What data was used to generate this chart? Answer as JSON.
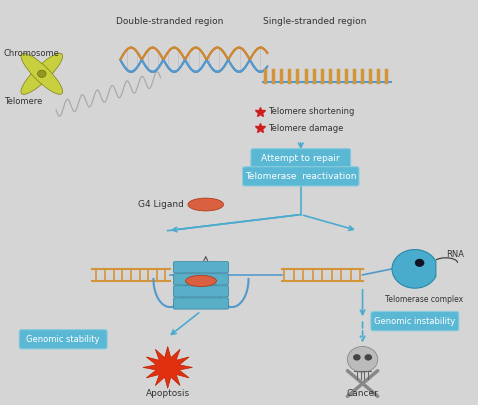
{
  "bg_color": "#d5d5d5",
  "labels": {
    "chromosome": "Chromosome",
    "telomere": "Telomere",
    "double_stranded": "Double-stranded region",
    "single_stranded": "Single-stranded region",
    "tel_shortening": "Telomere shortening",
    "tel_damage": "Telomere damage",
    "attempt_repair": "Attempt to repair",
    "telomerase_react": "Telomerase  reactivation",
    "g4_ligand": "G4 Ligand",
    "rna": "RNA",
    "telomerase_complex": "Telomerase complex",
    "genomic_stability": "Genomic stability",
    "genomic_instability": "Genomic instability",
    "apoptosis": "Apoptosis",
    "cancer": "Cancer"
  },
  "box_color": "#5ab8d4",
  "box_text_color": "white",
  "arrow_color": "#4aabcf",
  "g4_ligand_color": "#d96040",
  "strand_color": "#d4943a",
  "dna_blue": "#5599cc",
  "dna_gold": "#cc8833"
}
